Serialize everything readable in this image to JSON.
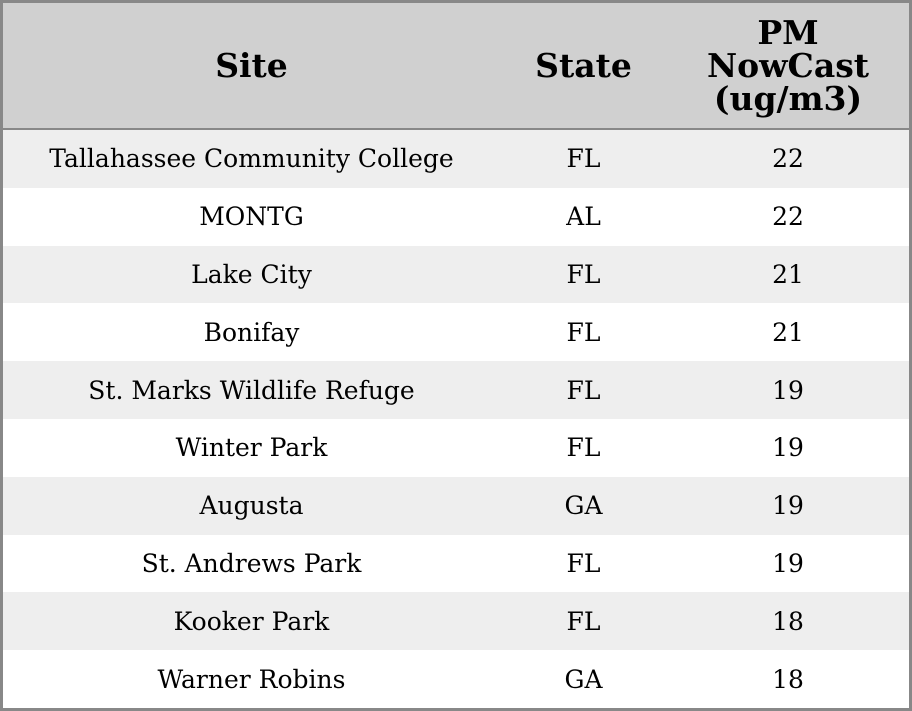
{
  "table": {
    "header": [
      "Site",
      "State",
      "PM NowCast (ug/m3)"
    ],
    "rows": [
      [
        "Tallahassee Community College",
        "FL",
        22
      ],
      [
        "MONTG",
        "AL",
        22
      ],
      [
        "Lake City",
        "FL",
        21
      ],
      [
        "Bonifay",
        "FL",
        21
      ],
      [
        "St. Marks Wildlife Refuge",
        "FL",
        19
      ],
      [
        "Winter Park",
        "FL",
        19
      ],
      [
        "Augusta",
        "GA",
        19
      ],
      [
        "St. Andrews Park",
        "FL",
        19
      ],
      [
        "Kooker Park",
        "FL",
        18
      ],
      [
        "Warner Robins",
        "GA",
        18
      ]
    ]
  }
}
